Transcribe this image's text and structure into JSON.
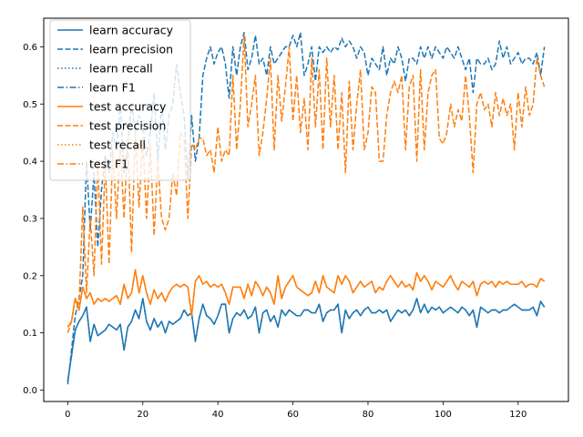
{
  "chart_data": {
    "type": "line",
    "title": "",
    "xlabel": "",
    "ylabel": "",
    "xlim": [
      -6.4,
      133.4
    ],
    "ylim": [
      -0.02,
      0.65
    ],
    "xticks": [
      0,
      20,
      40,
      60,
      80,
      100,
      120
    ],
    "yticks": [
      0.0,
      0.1,
      0.2,
      0.3,
      0.4,
      0.5,
      0.6
    ],
    "grid": false,
    "legend_position": "top-left",
    "colors": {
      "learn": "#1f77b4",
      "test": "#ff7f0e"
    },
    "x": [
      0,
      1,
      2,
      3,
      4,
      5,
      6,
      7,
      8,
      9,
      10,
      11,
      12,
      13,
      14,
      15,
      16,
      17,
      18,
      19,
      20,
      21,
      22,
      23,
      24,
      25,
      26,
      27,
      28,
      29,
      30,
      31,
      32,
      33,
      34,
      35,
      36,
      37,
      38,
      39,
      40,
      41,
      42,
      43,
      44,
      45,
      46,
      47,
      48,
      49,
      50,
      51,
      52,
      53,
      54,
      55,
      56,
      57,
      58,
      59,
      60,
      61,
      62,
      63,
      64,
      65,
      66,
      67,
      68,
      69,
      70,
      71,
      72,
      73,
      74,
      75,
      76,
      77,
      78,
      79,
      80,
      81,
      82,
      83,
      84,
      85,
      86,
      87,
      88,
      89,
      90,
      91,
      92,
      93,
      94,
      95,
      96,
      97,
      98,
      99,
      100,
      101,
      102,
      103,
      104,
      105,
      106,
      107,
      108,
      109,
      110,
      111,
      112,
      113,
      114,
      115,
      116,
      117,
      118,
      119,
      120,
      121,
      122,
      123,
      124,
      125,
      126,
      127
    ],
    "series": [
      {
        "name": "learn accuracy",
        "group": "learn",
        "style": "solid",
        "values": [
          0.015,
          0.06,
          0.105,
          0.12,
          0.13,
          0.145,
          0.085,
          0.115,
          0.095,
          0.1,
          0.105,
          0.115,
          0.11,
          0.105,
          0.115,
          0.07,
          0.11,
          0.12,
          0.14,
          0.125,
          0.16,
          0.12,
          0.105,
          0.125,
          0.11,
          0.12,
          0.1,
          0.12,
          0.115,
          0.12,
          0.125,
          0.14,
          0.13,
          0.135,
          0.085,
          0.125,
          0.15,
          0.13,
          0.125,
          0.115,
          0.13,
          0.15,
          0.15,
          0.1,
          0.125,
          0.135,
          0.13,
          0.14,
          0.125,
          0.13,
          0.145,
          0.1,
          0.135,
          0.14,
          0.12,
          0.13,
          0.11,
          0.14,
          0.13,
          0.14,
          0.135,
          0.13,
          0.13,
          0.14,
          0.14,
          0.135,
          0.135,
          0.15,
          0.12,
          0.135,
          0.14,
          0.14,
          0.15,
          0.1,
          0.14,
          0.125,
          0.135,
          0.14,
          0.13,
          0.14,
          0.145,
          0.135,
          0.135,
          0.14,
          0.135,
          0.14,
          0.12,
          0.13,
          0.14,
          0.135,
          0.14,
          0.13,
          0.14,
          0.16,
          0.135,
          0.15,
          0.135,
          0.145,
          0.14,
          0.145,
          0.135,
          0.14,
          0.145,
          0.14,
          0.135,
          0.145,
          0.14,
          0.13,
          0.14,
          0.11,
          0.145,
          0.14,
          0.135,
          0.14,
          0.14,
          0.135,
          0.14,
          0.14,
          0.145,
          0.15,
          0.145,
          0.14,
          0.14,
          0.14,
          0.145,
          0.13,
          0.155,
          0.145
        ]
      },
      {
        "name": "learn precision",
        "group": "learn",
        "style": "dashed",
        "values": [
          0.01,
          0.07,
          0.13,
          0.16,
          0.2,
          0.4,
          0.28,
          0.38,
          0.25,
          0.35,
          0.41,
          0.38,
          0.45,
          0.42,
          0.5,
          0.38,
          0.43,
          0.5,
          0.45,
          0.48,
          0.46,
          0.41,
          0.45,
          0.52,
          0.4,
          0.5,
          0.42,
          0.48,
          0.5,
          0.57,
          0.52,
          0.48,
          0.37,
          0.48,
          0.4,
          0.44,
          0.55,
          0.58,
          0.6,
          0.57,
          0.59,
          0.6,
          0.57,
          0.51,
          0.6,
          0.55,
          0.6,
          0.625,
          0.56,
          0.58,
          0.62,
          0.57,
          0.58,
          0.55,
          0.6,
          0.57,
          0.58,
          0.59,
          0.6,
          0.6,
          0.62,
          0.6,
          0.625,
          0.55,
          0.57,
          0.6,
          0.54,
          0.6,
          0.59,
          0.6,
          0.59,
          0.6,
          0.595,
          0.615,
          0.6,
          0.61,
          0.6,
          0.58,
          0.6,
          0.59,
          0.55,
          0.58,
          0.57,
          0.56,
          0.6,
          0.55,
          0.58,
          0.57,
          0.6,
          0.58,
          0.54,
          0.58,
          0.58,
          0.57,
          0.6,
          0.58,
          0.6,
          0.58,
          0.6,
          0.59,
          0.58,
          0.6,
          0.59,
          0.58,
          0.6,
          0.58,
          0.56,
          0.58,
          0.52,
          0.58,
          0.57,
          0.57,
          0.58,
          0.56,
          0.57,
          0.61,
          0.58,
          0.6,
          0.57,
          0.58,
          0.59,
          0.57,
          0.58,
          0.58,
          0.57,
          0.59,
          0.55,
          0.6
        ]
      },
      {
        "name": "learn recall",
        "group": "learn",
        "style": "dotted",
        "values": [
          0.015,
          0.06,
          0.105,
          0.12,
          0.13,
          0.145,
          0.085,
          0.115,
          0.095,
          0.1,
          0.105,
          0.115,
          0.11,
          0.105,
          0.115,
          0.07,
          0.11,
          0.12,
          0.14,
          0.125,
          0.16,
          0.12,
          0.105,
          0.125,
          0.11,
          0.12,
          0.1,
          0.12,
          0.115,
          0.12,
          0.125,
          0.14,
          0.13,
          0.135,
          0.085,
          0.125,
          0.15,
          0.13,
          0.125,
          0.115,
          0.13,
          0.15,
          0.15,
          0.1,
          0.125,
          0.135,
          0.13,
          0.14,
          0.125,
          0.13,
          0.145,
          0.1,
          0.135,
          0.14,
          0.12,
          0.13,
          0.11,
          0.14,
          0.13,
          0.14,
          0.135,
          0.13,
          0.13,
          0.14,
          0.14,
          0.135,
          0.135,
          0.15,
          0.12,
          0.135,
          0.14,
          0.14,
          0.15,
          0.1,
          0.14,
          0.125,
          0.135,
          0.14,
          0.13,
          0.14,
          0.145,
          0.135,
          0.135,
          0.14,
          0.135,
          0.14,
          0.12,
          0.13,
          0.14,
          0.135,
          0.14,
          0.13,
          0.14,
          0.16,
          0.135,
          0.15,
          0.135,
          0.145,
          0.14,
          0.145,
          0.135,
          0.14,
          0.145,
          0.14,
          0.135,
          0.145,
          0.14,
          0.13,
          0.14,
          0.11,
          0.145,
          0.14,
          0.135,
          0.14,
          0.14,
          0.135,
          0.14,
          0.14,
          0.145,
          0.15,
          0.145,
          0.14,
          0.14,
          0.14,
          0.145,
          0.13,
          0.155,
          0.145
        ]
      },
      {
        "name": "learn F1",
        "group": "learn",
        "style": "dashdot",
        "values": [
          0.015,
          0.06,
          0.105,
          0.12,
          0.13,
          0.145,
          0.085,
          0.115,
          0.095,
          0.1,
          0.105,
          0.115,
          0.11,
          0.105,
          0.115,
          0.07,
          0.11,
          0.12,
          0.14,
          0.125,
          0.16,
          0.12,
          0.105,
          0.125,
          0.11,
          0.12,
          0.1,
          0.12,
          0.115,
          0.12,
          0.125,
          0.14,
          0.13,
          0.135,
          0.085,
          0.125,
          0.15,
          0.13,
          0.125,
          0.115,
          0.13,
          0.15,
          0.15,
          0.1,
          0.125,
          0.135,
          0.13,
          0.14,
          0.125,
          0.13,
          0.145,
          0.1,
          0.135,
          0.14,
          0.12,
          0.13,
          0.11,
          0.14,
          0.13,
          0.14,
          0.135,
          0.13,
          0.13,
          0.14,
          0.14,
          0.135,
          0.135,
          0.15,
          0.12,
          0.135,
          0.14,
          0.14,
          0.15,
          0.1,
          0.14,
          0.125,
          0.135,
          0.14,
          0.13,
          0.14,
          0.145,
          0.135,
          0.135,
          0.14,
          0.135,
          0.14,
          0.12,
          0.13,
          0.14,
          0.135,
          0.14,
          0.13,
          0.14,
          0.16,
          0.135,
          0.15,
          0.135,
          0.145,
          0.14,
          0.145,
          0.135,
          0.14,
          0.145,
          0.14,
          0.135,
          0.145,
          0.14,
          0.13,
          0.14,
          0.11,
          0.145,
          0.14,
          0.135,
          0.14,
          0.14,
          0.135,
          0.14,
          0.14,
          0.145,
          0.15,
          0.145,
          0.14,
          0.14,
          0.14,
          0.145,
          0.13,
          0.155,
          0.145
        ]
      },
      {
        "name": "test accuracy",
        "group": "test",
        "style": "solid",
        "values": [
          0.11,
          0.12,
          0.16,
          0.14,
          0.18,
          0.16,
          0.17,
          0.15,
          0.16,
          0.155,
          0.16,
          0.155,
          0.16,
          0.165,
          0.15,
          0.185,
          0.16,
          0.17,
          0.21,
          0.17,
          0.2,
          0.17,
          0.15,
          0.175,
          0.16,
          0.17,
          0.155,
          0.17,
          0.18,
          0.185,
          0.18,
          0.185,
          0.18,
          0.13,
          0.19,
          0.2,
          0.185,
          0.19,
          0.18,
          0.185,
          0.18,
          0.185,
          0.17,
          0.15,
          0.18,
          0.18,
          0.18,
          0.16,
          0.185,
          0.165,
          0.19,
          0.18,
          0.165,
          0.18,
          0.17,
          0.15,
          0.2,
          0.16,
          0.18,
          0.19,
          0.2,
          0.18,
          0.175,
          0.17,
          0.165,
          0.17,
          0.19,
          0.17,
          0.2,
          0.18,
          0.175,
          0.17,
          0.2,
          0.185,
          0.2,
          0.19,
          0.17,
          0.18,
          0.19,
          0.18,
          0.185,
          0.19,
          0.17,
          0.18,
          0.175,
          0.19,
          0.2,
          0.19,
          0.18,
          0.19,
          0.18,
          0.185,
          0.175,
          0.205,
          0.19,
          0.2,
          0.19,
          0.175,
          0.19,
          0.185,
          0.18,
          0.19,
          0.2,
          0.185,
          0.175,
          0.19,
          0.185,
          0.18,
          0.19,
          0.165,
          0.185,
          0.19,
          0.185,
          0.19,
          0.18,
          0.19,
          0.185,
          0.19,
          0.185,
          0.185,
          0.185,
          0.19,
          0.18,
          0.185,
          0.185,
          0.18,
          0.195,
          0.19
        ]
      },
      {
        "name": "test precision",
        "group": "test",
        "style": "dashed",
        "values": [
          0.1,
          0.12,
          0.16,
          0.15,
          0.32,
          0.17,
          0.3,
          0.2,
          0.4,
          0.22,
          0.4,
          0.22,
          0.42,
          0.3,
          0.43,
          0.3,
          0.44,
          0.24,
          0.45,
          0.32,
          0.44,
          0.3,
          0.43,
          0.27,
          0.4,
          0.3,
          0.28,
          0.3,
          0.38,
          0.34,
          0.45,
          0.44,
          0.3,
          0.43,
          0.42,
          0.44,
          0.44,
          0.41,
          0.42,
          0.38,
          0.46,
          0.4,
          0.42,
          0.41,
          0.55,
          0.42,
          0.5,
          0.62,
          0.46,
          0.5,
          0.55,
          0.41,
          0.45,
          0.51,
          0.58,
          0.42,
          0.55,
          0.47,
          0.53,
          0.6,
          0.47,
          0.55,
          0.45,
          0.51,
          0.42,
          0.58,
          0.46,
          0.56,
          0.42,
          0.58,
          0.46,
          0.55,
          0.42,
          0.52,
          0.38,
          0.54,
          0.42,
          0.5,
          0.56,
          0.42,
          0.45,
          0.53,
          0.52,
          0.4,
          0.4,
          0.48,
          0.52,
          0.54,
          0.52,
          0.55,
          0.42,
          0.53,
          0.55,
          0.4,
          0.56,
          0.42,
          0.52,
          0.55,
          0.56,
          0.44,
          0.43,
          0.45,
          0.5,
          0.46,
          0.49,
          0.47,
          0.55,
          0.48,
          0.38,
          0.5,
          0.52,
          0.49,
          0.5,
          0.46,
          0.52,
          0.48,
          0.51,
          0.48,
          0.5,
          0.42,
          0.52,
          0.46,
          0.53,
          0.48,
          0.5,
          0.58,
          0.55,
          0.53
        ]
      },
      {
        "name": "test recall",
        "group": "test",
        "style": "dotted",
        "values": [
          0.11,
          0.12,
          0.16,
          0.14,
          0.18,
          0.16,
          0.17,
          0.15,
          0.16,
          0.155,
          0.16,
          0.155,
          0.16,
          0.165,
          0.15,
          0.185,
          0.16,
          0.17,
          0.21,
          0.17,
          0.2,
          0.17,
          0.15,
          0.175,
          0.16,
          0.17,
          0.155,
          0.17,
          0.18,
          0.185,
          0.18,
          0.185,
          0.18,
          0.13,
          0.19,
          0.2,
          0.185,
          0.19,
          0.18,
          0.185,
          0.18,
          0.185,
          0.17,
          0.15,
          0.18,
          0.18,
          0.18,
          0.16,
          0.185,
          0.165,
          0.19,
          0.18,
          0.165,
          0.18,
          0.17,
          0.15,
          0.2,
          0.16,
          0.18,
          0.19,
          0.2,
          0.18,
          0.175,
          0.17,
          0.165,
          0.17,
          0.19,
          0.17,
          0.2,
          0.18,
          0.175,
          0.17,
          0.2,
          0.185,
          0.2,
          0.19,
          0.17,
          0.18,
          0.19,
          0.18,
          0.185,
          0.19,
          0.17,
          0.18,
          0.175,
          0.19,
          0.2,
          0.19,
          0.18,
          0.19,
          0.18,
          0.185,
          0.175,
          0.205,
          0.19,
          0.2,
          0.19,
          0.175,
          0.19,
          0.185,
          0.18,
          0.19,
          0.2,
          0.185,
          0.175,
          0.19,
          0.185,
          0.18,
          0.19,
          0.165,
          0.185,
          0.19,
          0.185,
          0.19,
          0.18,
          0.19,
          0.185,
          0.19,
          0.185,
          0.185,
          0.185,
          0.19,
          0.18,
          0.185,
          0.185,
          0.18,
          0.195,
          0.19
        ]
      },
      {
        "name": "test F1",
        "group": "test",
        "style": "dashdot",
        "values": [
          0.11,
          0.12,
          0.16,
          0.14,
          0.18,
          0.16,
          0.17,
          0.15,
          0.16,
          0.155,
          0.16,
          0.155,
          0.16,
          0.165,
          0.15,
          0.185,
          0.16,
          0.17,
          0.21,
          0.17,
          0.2,
          0.17,
          0.15,
          0.175,
          0.16,
          0.17,
          0.155,
          0.17,
          0.18,
          0.185,
          0.18,
          0.185,
          0.18,
          0.13,
          0.19,
          0.2,
          0.185,
          0.19,
          0.18,
          0.185,
          0.18,
          0.185,
          0.17,
          0.15,
          0.18,
          0.18,
          0.18,
          0.16,
          0.185,
          0.165,
          0.19,
          0.18,
          0.165,
          0.18,
          0.17,
          0.15,
          0.2,
          0.16,
          0.18,
          0.19,
          0.2,
          0.18,
          0.175,
          0.17,
          0.165,
          0.17,
          0.19,
          0.17,
          0.2,
          0.18,
          0.175,
          0.17,
          0.2,
          0.185,
          0.2,
          0.19,
          0.17,
          0.18,
          0.19,
          0.18,
          0.185,
          0.19,
          0.17,
          0.18,
          0.175,
          0.19,
          0.2,
          0.19,
          0.18,
          0.19,
          0.18,
          0.185,
          0.175,
          0.205,
          0.19,
          0.2,
          0.19,
          0.175,
          0.19,
          0.185,
          0.18,
          0.19,
          0.2,
          0.185,
          0.175,
          0.19,
          0.185,
          0.18,
          0.19,
          0.165,
          0.185,
          0.19,
          0.185,
          0.19,
          0.18,
          0.19,
          0.185,
          0.19,
          0.185,
          0.185,
          0.185,
          0.19,
          0.18,
          0.185,
          0.185,
          0.18,
          0.195,
          0.19
        ]
      }
    ]
  }
}
